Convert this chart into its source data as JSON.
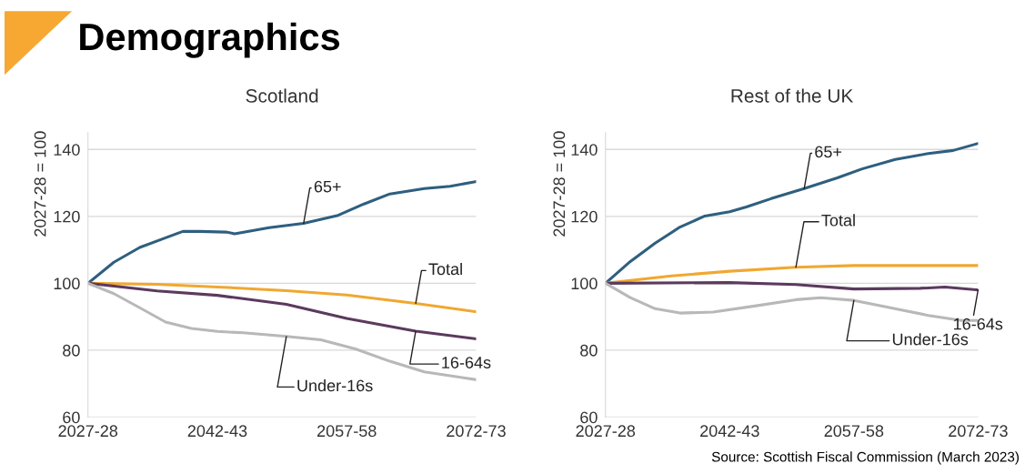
{
  "chart_data": [
    {
      "type": "line",
      "title": "Scotland",
      "ylabel": "2027-28 = 100",
      "annotations": [
        "Demographics"
      ],
      "categories": [
        "2027-28",
        null,
        null,
        null,
        null,
        null,
        null,
        null,
        null,
        null,
        null,
        null,
        null,
        null,
        null,
        "2042-43",
        null,
        null,
        null,
        null,
        null,
        null,
        null,
        null,
        null,
        null,
        null,
        null,
        null,
        null,
        "2057-58",
        null,
        null,
        null,
        null,
        null,
        null,
        null,
        null,
        null,
        null,
        null,
        null,
        null,
        null,
        "2072-73"
      ],
      "ylim": [
        60,
        145
      ],
      "yticks": [
        60,
        80,
        100,
        120,
        140
      ],
      "grid": "y",
      "legend": false,
      "marker": "none",
      "line_style": "solid",
      "series": [
        {
          "name": "65+",
          "color": "#2e5f7f",
          "values": [
            100,
            null,
            null,
            106.3,
            null,
            null,
            110.7,
            null,
            null,
            113.6,
            null,
            115.5,
            null,
            115.5,
            null,
            null,
            115.3,
            114.8,
            null,
            null,
            null,
            116.6,
            null,
            null,
            null,
            117.9,
            null,
            null,
            null,
            120.3,
            null,
            null,
            123.7,
            null,
            null,
            126.7,
            null,
            null,
            null,
            128.3,
            null,
            null,
            129,
            null,
            null,
            130.4
          ]
        },
        {
          "name": "Total",
          "color": "#f0a830",
          "values": [
            100,
            null,
            null,
            null,
            null,
            null,
            null,
            null,
            99.7,
            null,
            null,
            null,
            null,
            null,
            null,
            98.9,
            null,
            null,
            null,
            null,
            null,
            null,
            null,
            97.8,
            null,
            null,
            null,
            null,
            null,
            null,
            96.5,
            null,
            null,
            null,
            null,
            null,
            null,
            null,
            94,
            null,
            null,
            null,
            null,
            null,
            null,
            91.5
          ]
        },
        {
          "name": "16-64s",
          "color": "#5b3a5e",
          "values": [
            100,
            null,
            null,
            null,
            null,
            null,
            null,
            null,
            97.7,
            null,
            null,
            null,
            null,
            null,
            null,
            96.4,
            null,
            null,
            null,
            null,
            null,
            null,
            null,
            93.7,
            null,
            null,
            null,
            null,
            null,
            null,
            89.5,
            null,
            null,
            null,
            null,
            null,
            null,
            null,
            85.7,
            null,
            null,
            null,
            null,
            null,
            null,
            83.4
          ]
        },
        {
          "name": "Under-16s",
          "color": "#b8b8b8",
          "values": [
            100,
            null,
            null,
            96.9,
            null,
            null,
            92.7,
            null,
            null,
            88.4,
            null,
            null,
            86.5,
            null,
            null,
            85.6,
            null,
            null,
            85.2,
            null,
            null,
            null,
            null,
            84.1,
            null,
            null,
            null,
            83.1,
            null,
            null,
            null,
            80.4,
            null,
            null,
            null,
            76.7,
            null,
            null,
            null,
            73.5,
            null,
            null,
            null,
            null,
            null,
            71.2
          ]
        }
      ]
    },
    {
      "type": "line",
      "title": "Rest of the UK",
      "ylabel": "2027-28 = 100",
      "annotations": [
        "Source: Scottish Fiscal Commission (March 2023)"
      ],
      "categories": [
        "2027-28",
        null,
        null,
        null,
        null,
        null,
        null,
        null,
        null,
        null,
        null,
        null,
        null,
        null,
        null,
        "2042-43",
        null,
        null,
        null,
        null,
        null,
        null,
        null,
        null,
        null,
        null,
        null,
        null,
        null,
        null,
        "2057-58",
        null,
        null,
        null,
        null,
        null,
        null,
        null,
        null,
        null,
        null,
        null,
        null,
        null,
        null,
        "2072-73"
      ],
      "ylim": [
        60,
        145
      ],
      "yticks": [
        60,
        80,
        100,
        120,
        140
      ],
      "grid": "y",
      "legend": false,
      "marker": "none",
      "line_style": "solid",
      "series": [
        {
          "name": "65+",
          "color": "#2e5f7f",
          "values": [
            100,
            null,
            null,
            106.5,
            null,
            null,
            112,
            null,
            null,
            116.8,
            null,
            null,
            120.1,
            null,
            null,
            121.4,
            null,
            122.8,
            null,
            null,
            125.3,
            null,
            null,
            null,
            128.3,
            null,
            null,
            null,
            131.5,
            null,
            null,
            134.2,
            null,
            null,
            null,
            137,
            null,
            null,
            null,
            138.8,
            null,
            null,
            139.7,
            null,
            null,
            141.8
          ]
        },
        {
          "name": "Total",
          "color": "#f0a830",
          "values": [
            100,
            null,
            null,
            null,
            null,
            null,
            null,
            null,
            102.2,
            null,
            null,
            null,
            null,
            null,
            null,
            103.6,
            null,
            null,
            null,
            null,
            null,
            null,
            null,
            104.8,
            null,
            null,
            null,
            null,
            null,
            null,
            105.3,
            null,
            null,
            null,
            null,
            null,
            null,
            null,
            null,
            null,
            null,
            null,
            null,
            null,
            null,
            105.3
          ]
        },
        {
          "name": "16-64s",
          "color": "#5b3a5e",
          "values": [
            100,
            null,
            null,
            null,
            null,
            null,
            null,
            null,
            null,
            null,
            null,
            null,
            null,
            null,
            null,
            100.2,
            null,
            null,
            null,
            null,
            null,
            null,
            null,
            99.6,
            null,
            null,
            null,
            null,
            null,
            null,
            98.3,
            null,
            null,
            null,
            null,
            null,
            null,
            null,
            98.5,
            null,
            null,
            98.9,
            null,
            null,
            null,
            98
          ]
        },
        {
          "name": "Under-16s",
          "color": "#b8b8b8",
          "values": [
            100,
            null,
            null,
            95.7,
            null,
            null,
            92.4,
            null,
            null,
            91.1,
            null,
            null,
            null,
            91.4,
            null,
            null,
            null,
            null,
            93.2,
            null,
            null,
            null,
            null,
            95.1,
            null,
            null,
            95.7,
            null,
            null,
            null,
            94.9,
            null,
            null,
            null,
            92.9,
            null,
            null,
            null,
            null,
            90.4,
            null,
            null,
            null,
            88.9,
            null,
            88.9
          ]
        }
      ]
    }
  ]
}
